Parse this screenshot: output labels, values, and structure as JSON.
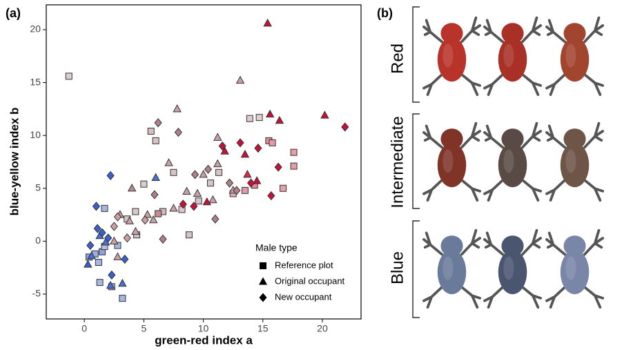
{
  "panel_labels": [
    "(a)",
    "(b)"
  ],
  "photo_rows": [
    "Red",
    "Intermediate",
    "Blue"
  ],
  "chart_data": {
    "type": "scatter",
    "xlabel": "green-red index a",
    "ylabel": "blue-yellow index b",
    "xlim": [
      -3.2,
      23.25
    ],
    "ylim": [
      -7.35,
      22.35
    ],
    "xticks": [
      0,
      5,
      10,
      15,
      20
    ],
    "yticks": [
      -5,
      0,
      5,
      10,
      15,
      20
    ],
    "grid": false,
    "legend_title": "Male type",
    "series": [
      {
        "name": "Reference plot",
        "marker": "square",
        "x": [
          -1.3,
          0.4,
          0.9,
          1.2,
          1.5,
          1.7,
          1.3,
          2.3,
          3.2,
          1.7,
          2.8,
          3.6,
          4.4,
          4.3,
          5,
          5.6,
          6,
          6.6,
          7.5,
          8.2,
          8.8,
          9.6,
          10.6,
          11.3,
          12.5,
          13.5,
          14.3,
          15.5,
          15.8,
          16.7,
          17.6,
          17.6,
          13.9,
          14.7,
          6.2
        ],
        "values": [
          15.6,
          -1.5,
          -1.2,
          -2,
          -1,
          -0.5,
          -3.9,
          -4.3,
          -5.4,
          3.1,
          -0.4,
          2.1,
          0.6,
          2.8,
          5.4,
          10.4,
          9.5,
          2.8,
          6.5,
          3,
          0.6,
          3.8,
          5.5,
          6.5,
          4.5,
          4.8,
          5.3,
          9.5,
          9.3,
          5,
          7.1,
          8.4,
          11.6,
          11.7,
          2.6
        ],
        "colors": [
          "#d9cfcf",
          "#8da3e0",
          "#9aaee0",
          "#a7b6e3",
          "#8da3e0",
          "#b6c0e5",
          "#a7b6e3",
          "#a7b6e3",
          "#a7b6e3",
          "#a7b6e3",
          "#a7b6e3",
          "#d4c4c8",
          "#d4c4c8",
          "#d6c8ca",
          "#d8cccd",
          "#d8bdc3",
          "#d8c3c6",
          "#d0b9bd",
          "#d8c3c6",
          "#e0c8cc",
          "#d8c3c6",
          "#d4c4c8",
          "#d8c3c6",
          "#d8c3c6",
          "#e0b0b8",
          "#e09aa8",
          "#e28a9a",
          "#e28a9a",
          "#e89aa6",
          "#e8a0ac",
          "#ea9aa6",
          "#ea9aa6",
          "#e4c8cc",
          "#ddd0d0",
          "#c88a95"
        ]
      },
      {
        "name": "Original occupant",
        "marker": "triangle",
        "x": [
          0.3,
          0.6,
          1.3,
          1.8,
          2.2,
          2.5,
          3.2,
          2.8,
          3,
          3.8,
          4,
          4.3,
          5.3,
          5.8,
          6,
          7.1,
          7.8,
          7.5,
          8.6,
          9.5,
          10,
          10.8,
          11.2,
          11.2,
          12.5,
          13.1,
          13.7,
          14.5,
          15.4,
          15.6,
          16.4,
          20.2,
          11.8,
          10.3,
          13.5
        ],
        "values": [
          -2.2,
          -1.4,
          0.5,
          -0.1,
          -4.2,
          0,
          -4,
          -1.5,
          2.5,
          1.9,
          5,
          0.9,
          2.5,
          2,
          6,
          7.4,
          12.5,
          3.1,
          4.7,
          4.5,
          6.3,
          3.9,
          9.8,
          7.3,
          4.8,
          15.2,
          6.3,
          5.7,
          20.6,
          12,
          11.4,
          11.9,
          8.5,
          3.7,
          8.2
        ],
        "colors": [
          "#3a5fcf",
          "#4a6fd0",
          "#4a6fd0",
          "#4a6fd0",
          "#4a6fd0",
          "#c8a0a6",
          "#4a6fd0",
          "#c8a0a6",
          "#c8a0a6",
          "#c8a0a6",
          "#b78c92",
          "#c8a0a6",
          "#c8a0a6",
          "#c8a0a6",
          "#4a6fd0",
          "#c8a0a6",
          "#c8a0a6",
          "#c8a0a6",
          "#c8a0a6",
          "#c8a0a6",
          "#c8a0a6",
          "#c8a0a6",
          "#c8a0a6",
          "#c8a0a6",
          "#c8a0a6",
          "#c8a0a6",
          "#d82a4a",
          "#c8103a",
          "#c8103a",
          "#c8103a",
          "#c8103a",
          "#c8103a",
          "#c8103a",
          "#c8103a",
          "#c8103a"
        ]
      },
      {
        "name": "New occupant",
        "marker": "diamond",
        "x": [
          1.0,
          2.2,
          1.1,
          0.5,
          1.5,
          2.0,
          3.4,
          2.3,
          2.8,
          2.5,
          3.6,
          5.1,
          5.9,
          6.2,
          6.6,
          7.9,
          9.3,
          10.4,
          11.0,
          12.2,
          12.8,
          11.6,
          13.1,
          14,
          14.6,
          15.7,
          16.3,
          21.9,
          8.3,
          9.2
        ],
        "values": [
          3.3,
          6.2,
          1.2,
          -0.4,
          0.8,
          0.3,
          -1.7,
          -3.2,
          2.3,
          1.4,
          0.3,
          2,
          4.4,
          11.2,
          0.2,
          10.3,
          6.3,
          6.8,
          2.1,
          5.5,
          4.8,
          9,
          9.3,
          5.5,
          8.8,
          4.3,
          7,
          10.8,
          3.5,
          3.3
        ],
        "colors": [
          "#3a5fcf",
          "#3a5fcf",
          "#3a5fcf",
          "#3a5fcf",
          "#3a5fcf",
          "#3a5fcf",
          "#3a5fcf",
          "#3a5fcf",
          "#c8a0a6",
          "#c8a0a6",
          "#c8a0a6",
          "#c8a0a6",
          "#b08088",
          "#b08088",
          "#b08088",
          "#b08088",
          "#b08088",
          "#b08088",
          "#b08088",
          "#b08088",
          "#b08088",
          "#c8103a",
          "#c8103a",
          "#c8103a",
          "#c8103a",
          "#c8103a",
          "#c8103a",
          "#c8103a",
          "#c8103a",
          "#c8103a"
        ]
      }
    ]
  }
}
